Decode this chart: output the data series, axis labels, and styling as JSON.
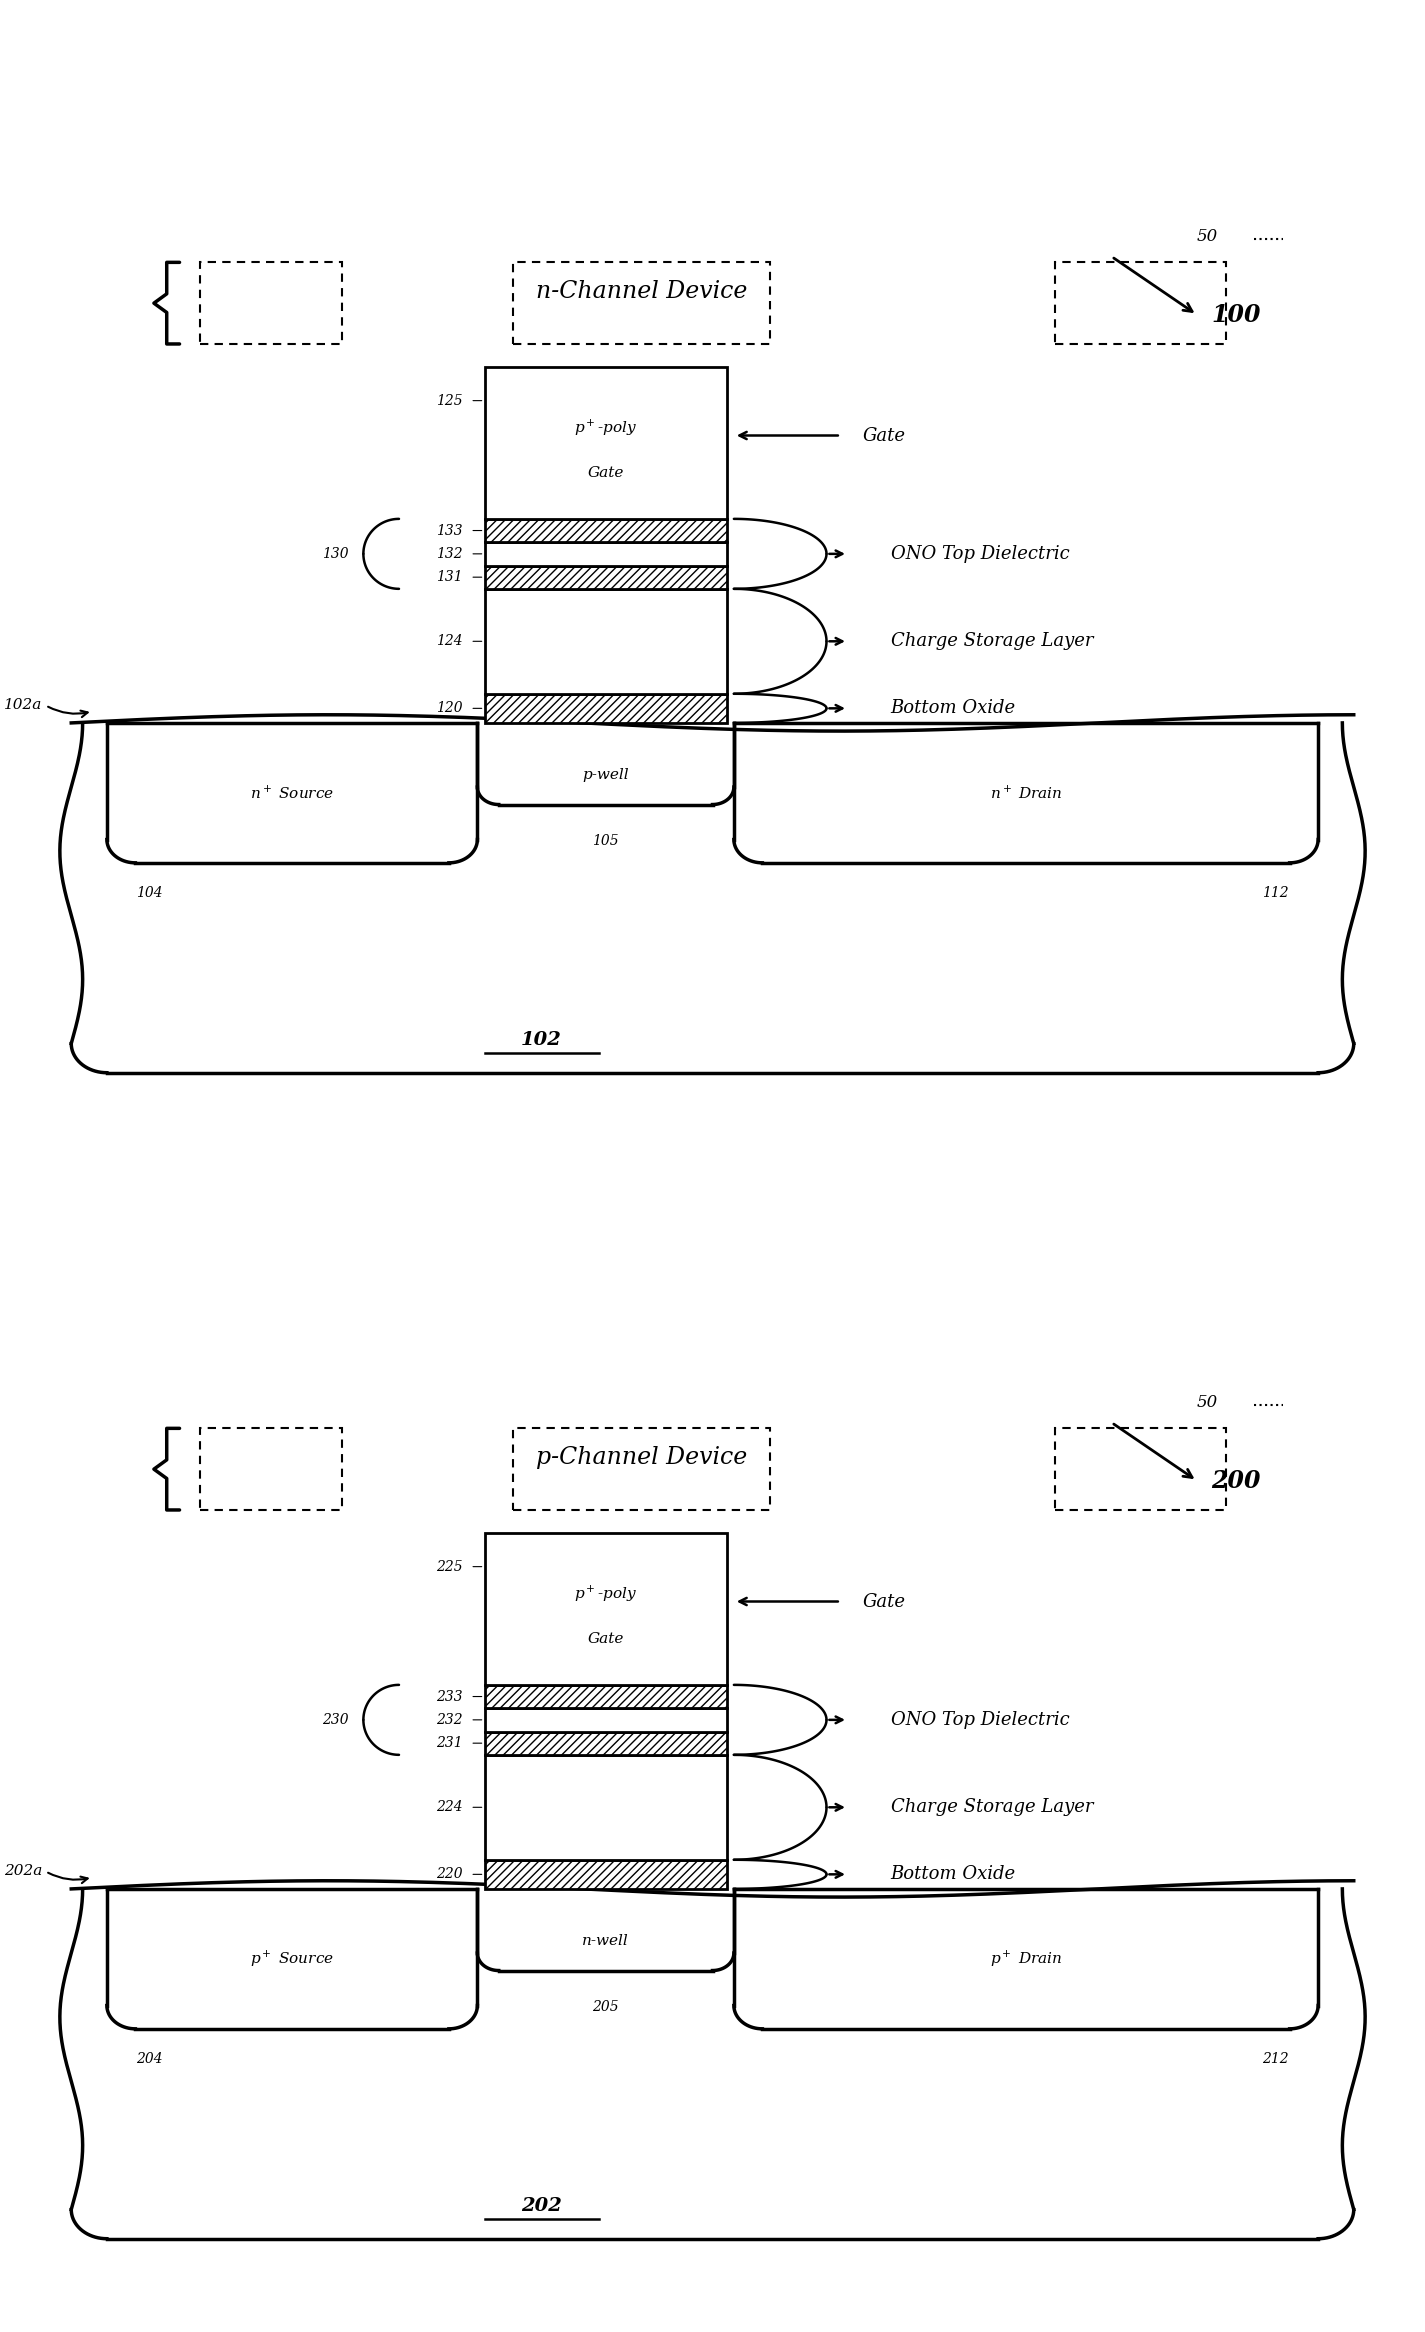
{
  "bg_color": "#ffffff",
  "fig_width": 14.25,
  "fig_height": 23.32,
  "diagrams": [
    {
      "title": "n-Channel Device",
      "fig_label": "100",
      "substrate_label": "102",
      "substrate_surface_label": "102a",
      "well_label": "p-well",
      "well_num": "105",
      "source_label": "n$^+$ Source",
      "source_num": "104",
      "drain_label": "n$^+$ Drain",
      "drain_num": "112",
      "gate_poly_text_line1": "p$^+$-poly",
      "gate_poly_text_line2": "Gate",
      "gate_num": "125",
      "ono_group_num": "130",
      "layer133_num": "133",
      "layer132_num": "132",
      "layer131_num": "131",
      "charge_num": "124",
      "bottom_oxide_num": "120",
      "anno_gate": "Gate",
      "anno_ono": "ONO Top Dielectric",
      "anno_charge": "Charge Storage Layer",
      "anno_bottom": "Bottom Oxide",
      "ref_num": "50"
    },
    {
      "title": "p-Channel Device",
      "fig_label": "200",
      "substrate_label": "202",
      "substrate_surface_label": "202a",
      "well_label": "n-well",
      "well_num": "205",
      "source_label": "p$^+$ Source",
      "source_num": "204",
      "drain_label": "p$^+$ Drain",
      "drain_num": "212",
      "gate_poly_text_line1": "p$^+$-poly",
      "gate_poly_text_line2": "Gate",
      "gate_num": "225",
      "ono_group_num": "230",
      "layer133_num": "233",
      "layer132_num": "232",
      "layer131_num": "231",
      "charge_num": "224",
      "bottom_oxide_num": "220",
      "anno_gate": "Gate",
      "anno_ono": "ONO Top Dielectric",
      "anno_charge": "Charge Storage Layer",
      "anno_bottom": "Bottom Oxide",
      "ref_num": "50"
    }
  ]
}
